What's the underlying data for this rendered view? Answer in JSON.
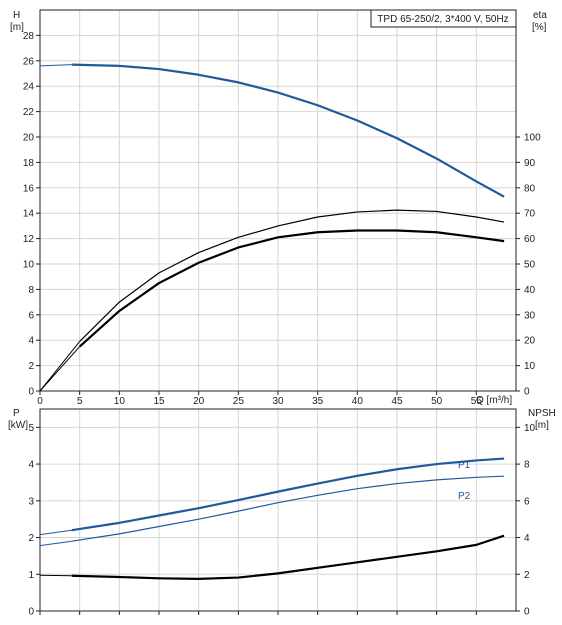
{
  "chart_data": [
    {
      "type": "line",
      "title": "TPD 65-250/2, 3*400 V, 50Hz",
      "xlabel": "Q [m³/h]",
      "xlim": [
        0,
        60
      ],
      "x_ticks": [
        "0",
        "5",
        "10",
        "15",
        "20",
        "25",
        "30",
        "35",
        "40",
        "45",
        "50",
        "55"
      ],
      "ylabel_left": "H",
      "ylabel_left_unit": "[m]",
      "ylim_left": [
        0,
        30
      ],
      "y_ticks_left": [
        "0",
        "2",
        "4",
        "6",
        "8",
        "10",
        "12",
        "14",
        "16",
        "18",
        "20",
        "22",
        "24",
        "26",
        "28"
      ],
      "ylabel_right": "eta",
      "ylabel_right_unit": "[%]",
      "ylim_right": [
        0,
        150
      ],
      "y_ticks_right": [
        "0",
        "10",
        "20",
        "30",
        "40",
        "50",
        "60",
        "70",
        "80",
        "90",
        "100"
      ],
      "grid": true,
      "series": [
        {
          "axis": "left",
          "color": "#1f5a9a",
          "x": [
            0,
            4,
            10,
            15,
            20,
            25,
            30,
            35,
            40,
            45,
            50,
            55,
            58.5
          ],
          "y": [
            25.6,
            25.7,
            25.6,
            25.35,
            24.9,
            24.3,
            23.5,
            22.5,
            21.3,
            19.9,
            18.3,
            16.5,
            15.3
          ]
        },
        {
          "axis": "right",
          "color": "#000000",
          "x": [
            0,
            5,
            10,
            15,
            20,
            25,
            30,
            35,
            40,
            45,
            50,
            55,
            58.5
          ],
          "y": [
            0,
            17.5,
            31.5,
            42.5,
            50.5,
            56.5,
            60.5,
            62.5,
            63.2,
            63.2,
            62.5,
            60.5,
            59
          ]
        },
        {
          "axis": "right",
          "color": "#000000",
          "x": [
            0,
            5,
            10,
            15,
            20,
            25,
            30,
            35,
            40,
            45,
            50,
            55,
            58.5
          ],
          "y": [
            0,
            19.5,
            35,
            46.5,
            54.5,
            60.5,
            65,
            68.5,
            70.5,
            71.2,
            70.7,
            68.5,
            66.5
          ]
        }
      ]
    },
    {
      "type": "line",
      "xlim": [
        0,
        60
      ],
      "ylabel_left": "P",
      "ylabel_left_unit": "[kW]",
      "ylim_left": [
        0,
        5.5
      ],
      "y_ticks_left": [
        "0",
        "1",
        "2",
        "3",
        "4",
        "5"
      ],
      "ylabel_right": "NPSH",
      "ylabel_right_unit": "[m]",
      "ylim_right": [
        0,
        11
      ],
      "y_ticks_right": [
        "0",
        "2",
        "4",
        "6",
        "8",
        "10"
      ],
      "grid": true,
      "series": [
        {
          "name": "P1",
          "axis": "left",
          "color": "#1f5a9a",
          "x": [
            0,
            4,
            10,
            15,
            20,
            25,
            30,
            35,
            40,
            45,
            50,
            55,
            58.5
          ],
          "y": [
            2.08,
            2.2,
            2.4,
            2.6,
            2.8,
            3.02,
            3.25,
            3.47,
            3.68,
            3.86,
            4.0,
            4.1,
            4.15
          ]
        },
        {
          "name": "P2",
          "axis": "left",
          "color": "#1f5a9a",
          "x": [
            0,
            4,
            10,
            15,
            20,
            25,
            30,
            35,
            40,
            45,
            50,
            55,
            58.5
          ],
          "y": [
            1.78,
            1.9,
            2.1,
            2.3,
            2.5,
            2.72,
            2.95,
            3.15,
            3.33,
            3.47,
            3.57,
            3.64,
            3.67
          ]
        },
        {
          "axis": "right",
          "color": "#000000",
          "x": [
            0,
            4,
            10,
            15,
            20,
            25,
            30,
            35,
            40,
            45,
            50,
            55,
            58.5
          ],
          "y": [
            1.95,
            1.92,
            1.85,
            1.78,
            1.75,
            1.82,
            2.05,
            2.35,
            2.65,
            2.95,
            3.25,
            3.6,
            4.1
          ]
        }
      ]
    }
  ]
}
